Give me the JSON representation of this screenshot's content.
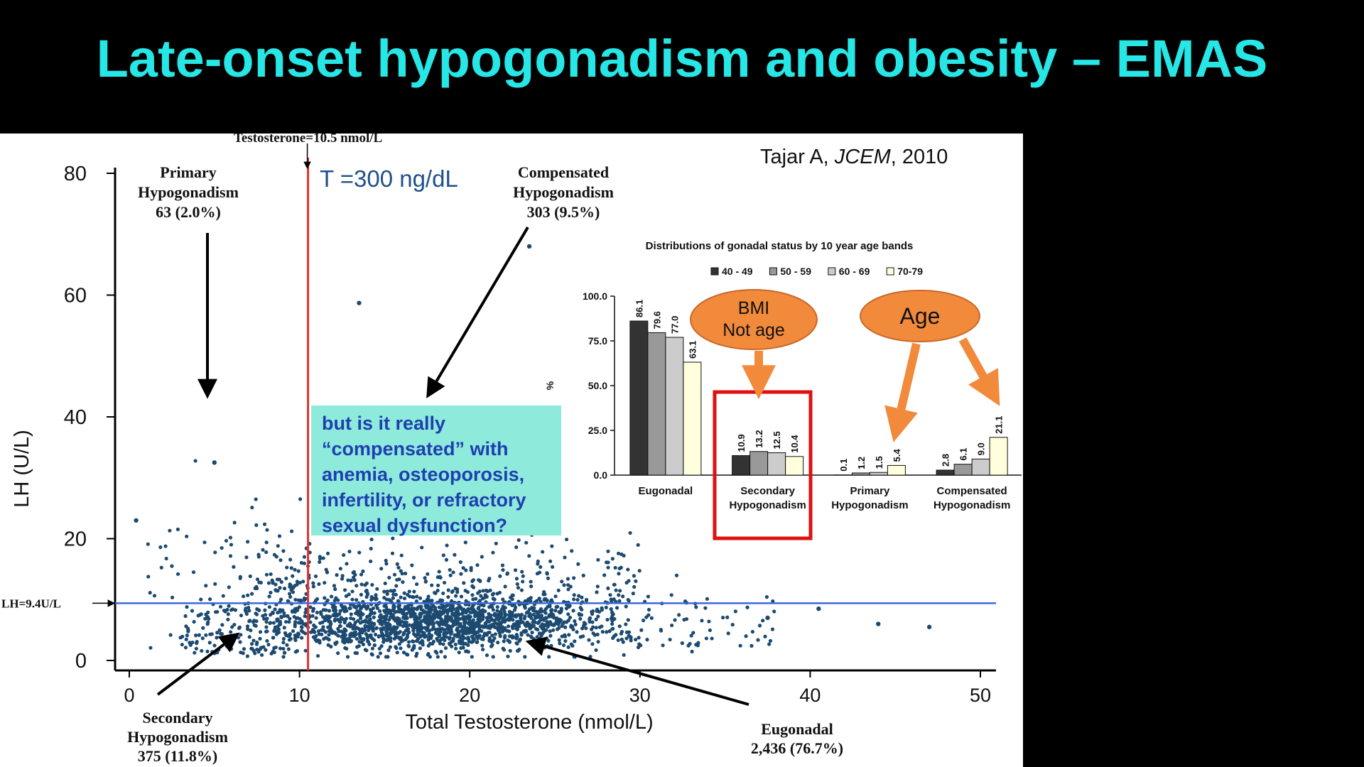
{
  "slide": {
    "title": "Late-onset hypogonadism and obesity – EMAS",
    "citation": "Tajar A, JCEM, 2010",
    "citation_parts": [
      "Tajar A, ",
      "JCEM",
      ", 2010"
    ],
    "t_threshold_note": "T =300 ng/dL",
    "question_lines": [
      "but is it really",
      "“compensated” with",
      "anemia, osteoporosis,",
      "infertility, or refractory",
      "sexual dysfunction?"
    ],
    "callouts": {
      "bmi": [
        "BMI",
        "Not age"
      ],
      "age": "Age"
    },
    "colors": {
      "title": "#27e6e6",
      "points": "#1c4a70",
      "threshold_vertical": "#e53030",
      "threshold_horizontal": "#3a6ad8",
      "callout_fill": "#f28a3c",
      "highlight_box": "#e01010",
      "question_box": "#8eeadb"
    }
  },
  "chart_data": [
    {
      "type": "scatter",
      "xlabel": "Total Testosterone (nmol/L)",
      "ylabel": "LH (U/L)",
      "xlim": [
        0,
        50
      ],
      "ylim": [
        0,
        80
      ],
      "xticks": [
        0,
        10,
        20,
        30,
        40,
        50
      ],
      "yticks": [
        0,
        20,
        40,
        60,
        80
      ],
      "grid": false,
      "thresholds": {
        "testosterone": {
          "value": 10.5,
          "label": "Testosterone=10.5 nmol/L"
        },
        "lh": {
          "value": 9.4,
          "label": "LH=9.4U/L"
        }
      },
      "quadrant_labels": [
        {
          "name": "Primary Hypogonadism",
          "lines": [
            "Primary",
            "Hypogonadism",
            "63 (2.0%)"
          ],
          "count": 63,
          "percent": 2.0
        },
        {
          "name": "Compensated Hypogonadism",
          "lines": [
            "Compensated",
            "Hypogonadism",
            "303 (9.5%)"
          ],
          "count": 303,
          "percent": 9.5
        },
        {
          "name": "Secondary Hypogonadism",
          "lines": [
            "Secondary",
            "Hypogonadism",
            "375 (11.8%)"
          ],
          "count": 375,
          "percent": 11.8
        },
        {
          "name": "Eugonadal",
          "lines": [
            "Eugonadal",
            "2,436 (76.7%)"
          ],
          "count": 2436,
          "percent": 76.7
        }
      ],
      "notable_points": [
        {
          "x": 23.5,
          "y": 68
        },
        {
          "x": 13.5,
          "y": 58.7
        },
        {
          "x": 5,
          "y": 32.5
        },
        {
          "x": 0.4,
          "y": 23
        },
        {
          "x": 47,
          "y": 5.5
        },
        {
          "x": 44,
          "y": 6
        },
        {
          "x": 40.5,
          "y": 8.5
        },
        {
          "x": 37.5,
          "y": 7
        }
      ]
    },
    {
      "type": "bar",
      "title": "Distributions of gonadal status by 10 year age bands",
      "ylabel": "%",
      "ylim": [
        0,
        100
      ],
      "yticks": [
        0,
        25,
        50,
        75,
        100
      ],
      "ytick_labels": [
        "0.0",
        "25.0",
        "50.0",
        "75.0",
        "100.0"
      ],
      "legend_position": "top",
      "categories": [
        "Eugonadal",
        "Secondary Hypogonadism",
        "Primary Hypogonadism",
        "Compensated Hypogonadism"
      ],
      "category_lines": [
        [
          "Eugonadal"
        ],
        [
          "Secondary",
          "Hypogonadism"
        ],
        [
          "Primary",
          "Hypogonadism"
        ],
        [
          "Compensated",
          "Hypogonadism"
        ]
      ],
      "series": [
        {
          "name": "40 - 49",
          "color": "#333333",
          "values": [
            86.1,
            10.9,
            0.1,
            2.8
          ],
          "labels": [
            "86.1",
            "10.9",
            "0.1",
            "2.8"
          ]
        },
        {
          "name": "50 - 59",
          "color": "#999999",
          "values": [
            79.6,
            13.2,
            1.2,
            6.1
          ],
          "labels": [
            "79.6",
            "13.2",
            "1.2",
            "6.1"
          ]
        },
        {
          "name": "60 - 69",
          "color": "#cccccc",
          "values": [
            77.0,
            12.5,
            1.5,
            9.0
          ],
          "labels": [
            "77.0",
            "12.5",
            "1.5",
            "9.0"
          ]
        },
        {
          "name": "70-79",
          "color": "#ffffdd",
          "values": [
            63.1,
            10.4,
            5.4,
            21.1
          ],
          "labels": [
            "63.1",
            "10.4",
            "5.4",
            "21.1"
          ]
        }
      ]
    }
  ]
}
